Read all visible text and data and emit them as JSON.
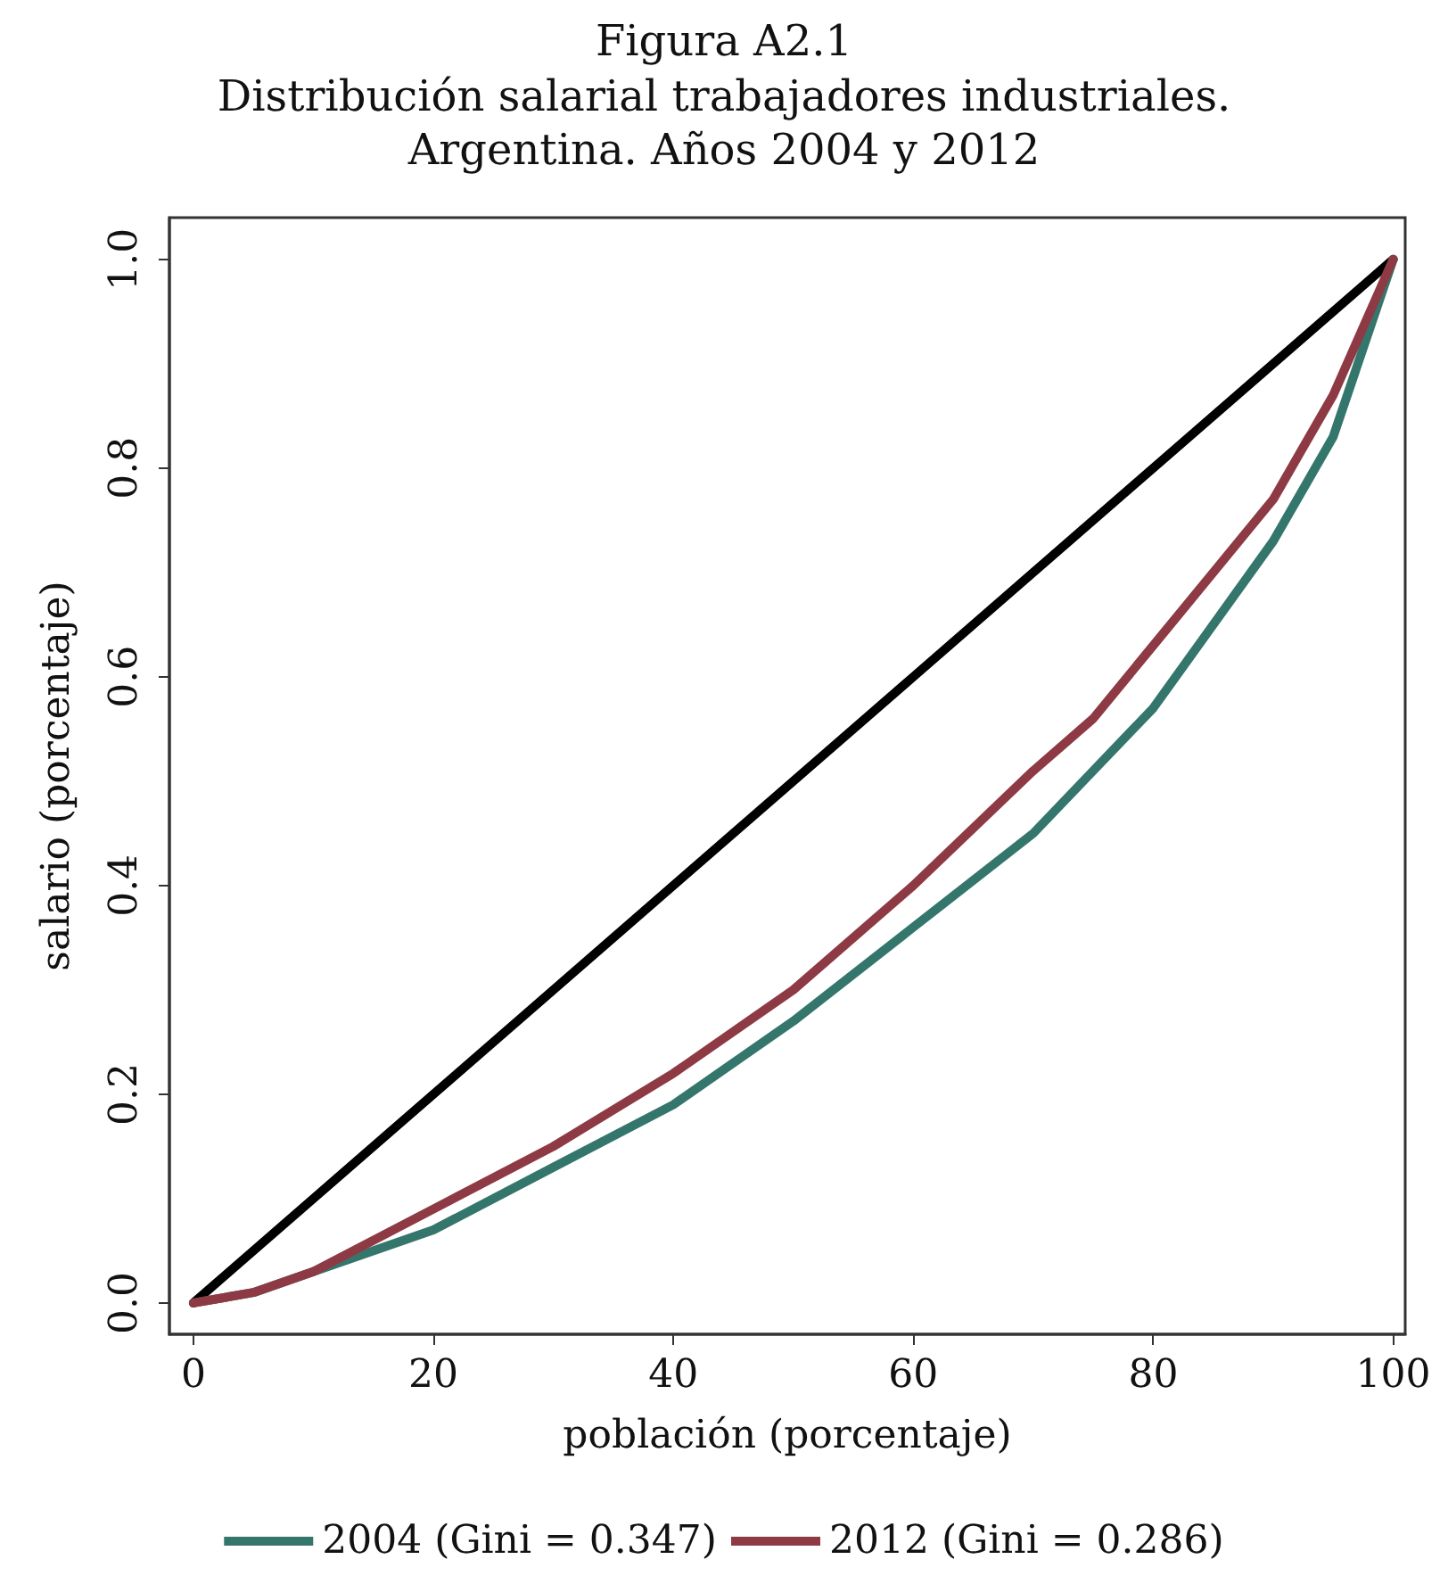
{
  "chart_data": {
    "type": "line",
    "title": "Figura A2.1",
    "subtitle": "Distribución salarial trabajadores industriales.\nArgentina. Años 2004 y 2012",
    "xlabel": "población (porcentaje)",
    "ylabel": "salario (porcentaje)",
    "x": [
      0,
      5,
      10,
      20,
      30,
      40,
      50,
      60,
      70,
      75,
      80,
      85,
      90,
      95,
      100
    ],
    "series": [
      {
        "color": "#000000",
        "x": [
          0,
          100
        ],
        "values": [
          0,
          1
        ]
      },
      {
        "name": "2004 (Gini = 0.347)",
        "color": "#35766c",
        "values": [
          0,
          0.01,
          0.03,
          0.07,
          0.13,
          0.19,
          0.27,
          0.36,
          0.45,
          0.51,
          0.57,
          0.65,
          0.73,
          0.83,
          1
        ]
      },
      {
        "name": "2012 (Gini = 0.286)",
        "color": "#8e3a44",
        "values": [
          0,
          0.01,
          0.03,
          0.09,
          0.15,
          0.22,
          0.3,
          0.4,
          0.51,
          0.56,
          0.63,
          0.7,
          0.77,
          0.87,
          1
        ]
      }
    ],
    "xlim": [
      -2,
      101
    ],
    "xticks": [
      0,
      20,
      40,
      60,
      80,
      100
    ],
    "ylim": [
      -0.03,
      1.04
    ],
    "yticks": [
      {
        "value": 0,
        "label": "0.0"
      },
      {
        "value": 0.2,
        "label": "0.2"
      },
      {
        "value": 0.4,
        "label": "0.4"
      },
      {
        "value": 0.6,
        "label": "0.6"
      },
      {
        "value": 0.8,
        "label": "0.8"
      },
      {
        "value": 1,
        "label": "1.0"
      }
    ],
    "grid": false,
    "legend": "bottom",
    "marker": "none",
    "line_style": "solid"
  }
}
